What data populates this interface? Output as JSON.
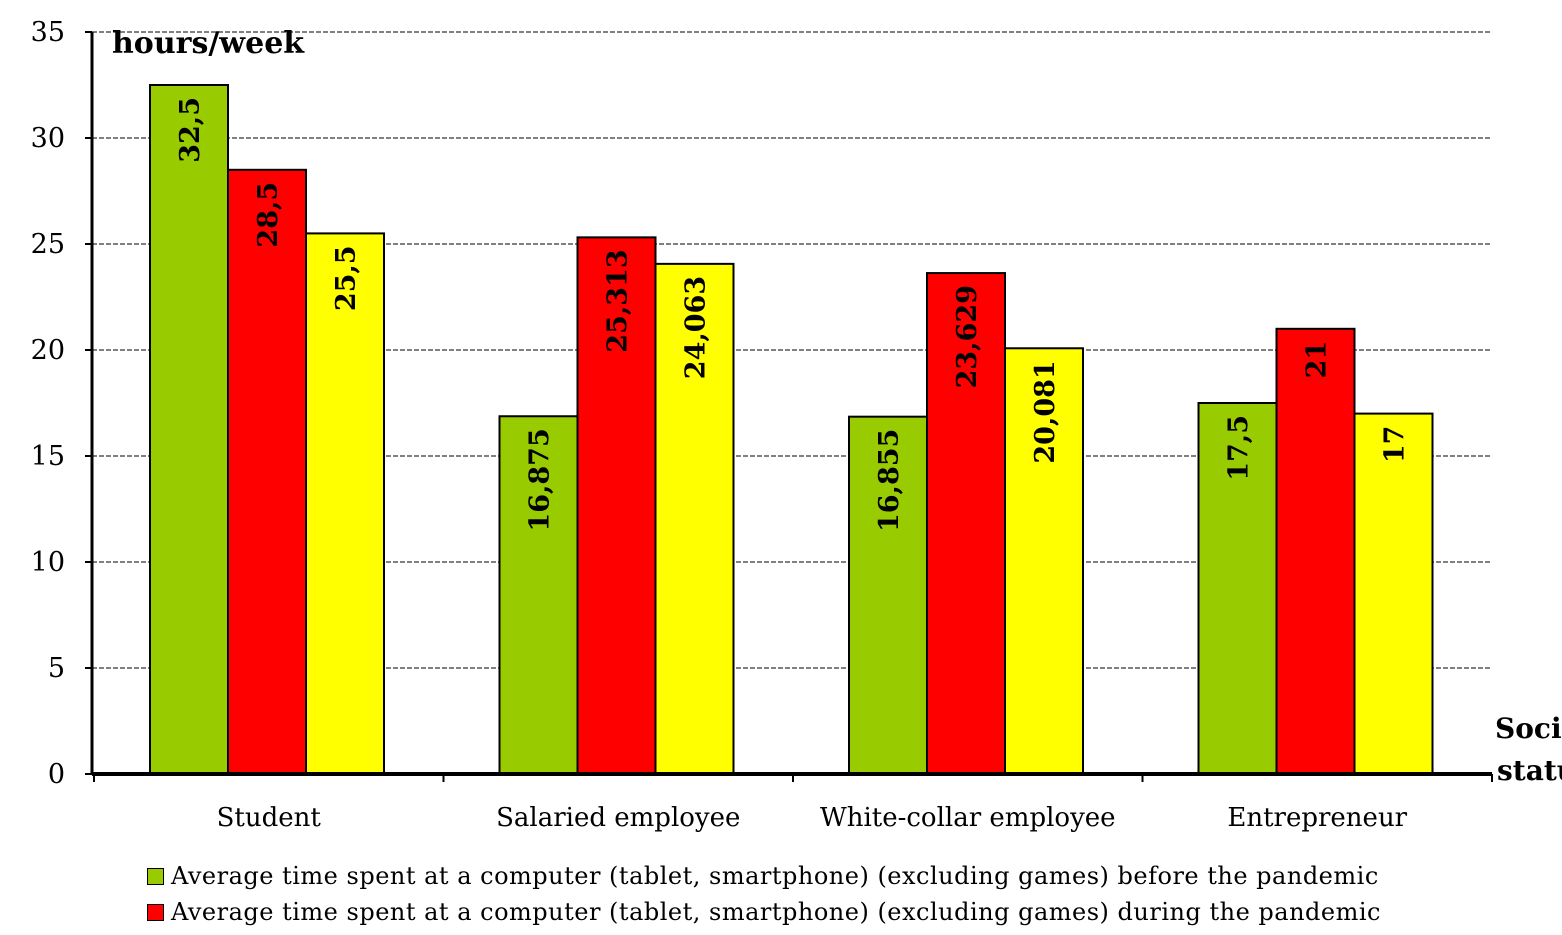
{
  "chart_data": {
    "type": "bar",
    "ylabel": "hours/week",
    "xlabel": "Social status",
    "ylim": [
      0,
      35
    ],
    "yticks": [
      0,
      5,
      10,
      15,
      20,
      25,
      30,
      35
    ],
    "grid": true,
    "categories": [
      "Student",
      "Salaried employee",
      "White-collar employee",
      "Entrepreneur"
    ],
    "series": [
      {
        "name": "Average time spent at a computer (tablet, smartphone) (excluding games) before the pandemic",
        "color": "#99cc00",
        "values": [
          32.5,
          16.875,
          16.855,
          17.5
        ],
        "labels": [
          "32,5",
          "16,875",
          "16,855",
          "17,5"
        ]
      },
      {
        "name": "Average time spent at a computer (tablet, smartphone) (excluding games) during the pandemic",
        "color": "#ff0000",
        "values": [
          28.5,
          25.313,
          23.629,
          21
        ],
        "labels": [
          "28,5",
          "25,313",
          "23,629",
          "21"
        ]
      },
      {
        "name": "",
        "color": "#ffff00",
        "values": [
          25.5,
          24.063,
          20.081,
          17
        ],
        "labels": [
          "25,5",
          "24,063",
          "20,081",
          "17"
        ]
      }
    ],
    "legend_position": "bottom"
  }
}
